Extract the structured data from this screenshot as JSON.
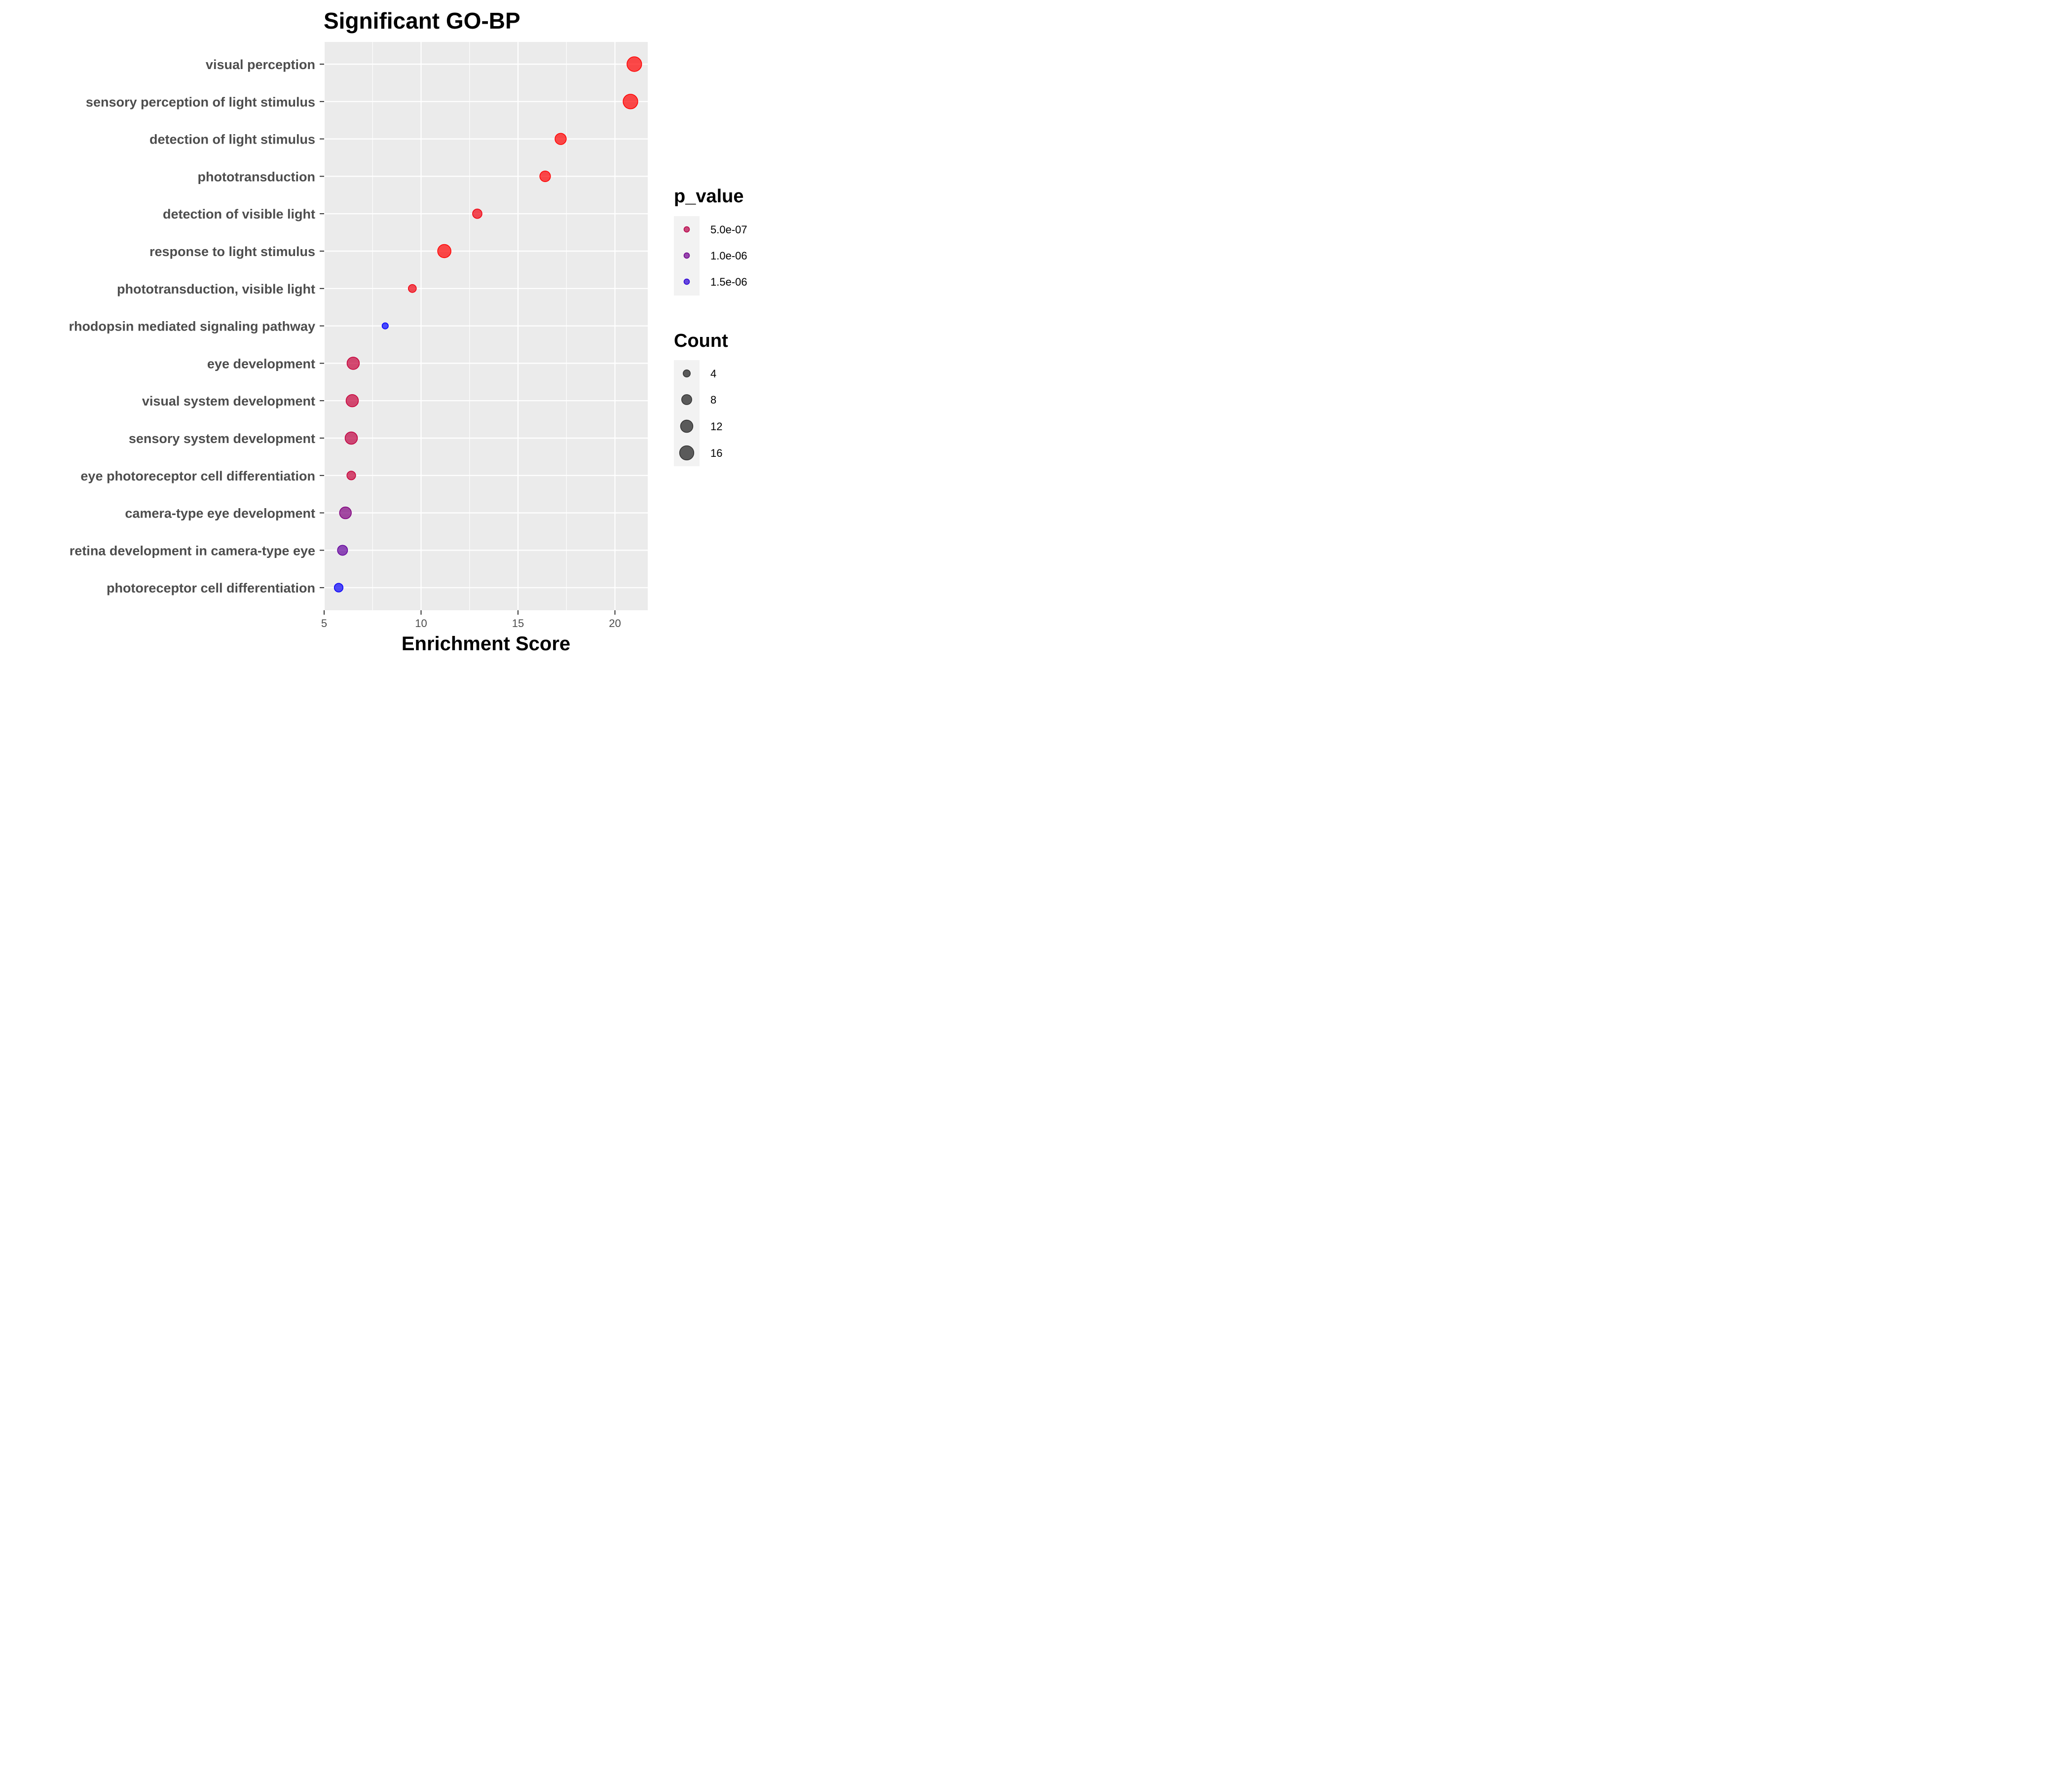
{
  "chart_data": {
    "type": "scatter",
    "title": "Significant GO-BP",
    "xlabel": "Enrichment Score",
    "ylabel": "",
    "xlim": [
      5,
      21.8
    ],
    "xticks": [
      5,
      10,
      15,
      20
    ],
    "grid": true,
    "legend_position": "right",
    "categories": [
      "visual perception",
      "sensory perception of light stimulus",
      "detection of light stimulus",
      "phototransduction",
      "detection of visible light",
      "response to light stimulus",
      "phototransduction, visible light",
      "rhodopsin mediated signaling pathway",
      "eye development",
      "visual system development",
      "sensory system development",
      "eye photoreceptor cell differentiation",
      "camera-type eye development",
      "retina development in camera-type eye",
      "photoreceptor cell differentiation"
    ],
    "points": [
      {
        "category": "visual perception",
        "x": 21.0,
        "count": 17,
        "p_value": 1e-12
      },
      {
        "category": "sensory perception of light stimulus",
        "x": 20.8,
        "count": 17,
        "p_value": 1e-12
      },
      {
        "category": "detection of light stimulus",
        "x": 17.2,
        "count": 10,
        "p_value": 1e-09
      },
      {
        "category": "phototransduction",
        "x": 16.4,
        "count": 9,
        "p_value": 1e-08
      },
      {
        "category": "detection of visible light",
        "x": 12.9,
        "count": 7,
        "p_value": 1e-07
      },
      {
        "category": "response to light stimulus",
        "x": 11.2,
        "count": 14,
        "p_value": 1e-09
      },
      {
        "category": "phototransduction, visible light",
        "x": 9.55,
        "count": 5,
        "p_value": 1e-07
      },
      {
        "category": "rhodopsin mediated signaling pathway",
        "x": 8.15,
        "count": 3,
        "p_value": 1e-05
      },
      {
        "category": "eye development",
        "x": 6.5,
        "count": 12,
        "p_value": 4e-07
      },
      {
        "category": "visual system development",
        "x": 6.45,
        "count": 12,
        "p_value": 4e-07
      },
      {
        "category": "sensory system development",
        "x": 6.4,
        "count": 12,
        "p_value": 4.5e-07
      },
      {
        "category": "eye photoreceptor cell differentiation",
        "x": 6.4,
        "count": 6,
        "p_value": 4e-07
      },
      {
        "category": "camera-type eye development",
        "x": 6.1,
        "count": 11,
        "p_value": 9e-07
      },
      {
        "category": "retina development in camera-type eye",
        "x": 5.95,
        "count": 8,
        "p_value": 1.1e-06
      },
      {
        "category": "photoreceptor cell differentiation",
        "x": 5.75,
        "count": 6,
        "p_value": 1.75e-06
      }
    ],
    "color_legend": {
      "title": "p_value",
      "low_color": "#ff0000",
      "high_color": "#0000ff",
      "range": [
        1e-12,
        1.8e-06
      ],
      "entries": [
        {
          "label": "5.0e-07",
          "value": 5e-07
        },
        {
          "label": "1.0e-06",
          "value": 1e-06
        },
        {
          "label": "1.5e-06",
          "value": 1.5e-06
        }
      ]
    },
    "size_legend": {
      "title": "Count",
      "entries": [
        {
          "label": "4",
          "value": 4
        },
        {
          "label": "8",
          "value": 8
        },
        {
          "label": "12",
          "value": 12
        },
        {
          "label": "16",
          "value": 16
        }
      ]
    },
    "colors": {
      "panel_background": "#ebebeb",
      "grid": "#ffffff",
      "legend_key_background": "#f2f2f2",
      "size_legend_point": "#333333"
    }
  }
}
